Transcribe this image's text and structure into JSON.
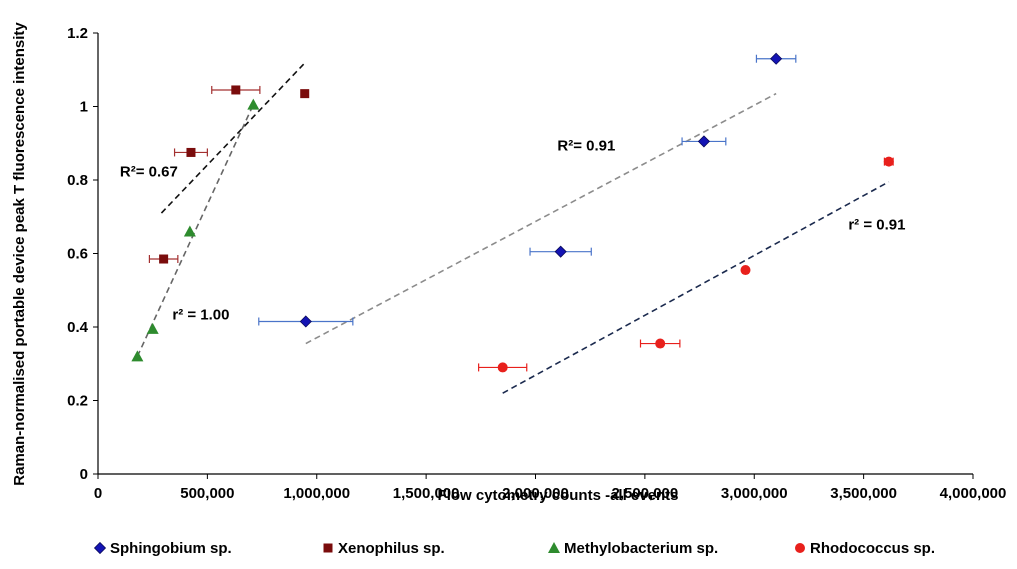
{
  "chart_data": {
    "type": "scatter",
    "xlabel": "Flow cytometry counts -all events",
    "ylabel": "Raman-normalised portable device peak T fluorescence intensity",
    "xlim": [
      0,
      4000000
    ],
    "ylim": [
      0,
      1.2
    ],
    "x_ticks": [
      0,
      500000,
      1000000,
      1500000,
      2000000,
      2500000,
      3000000,
      3500000,
      4000000
    ],
    "x_tick_labels": [
      "0",
      "500,000",
      "1,000,000",
      "1,500,000",
      "2,000,000",
      "2,500,000",
      "3,000,000",
      "3,500,000",
      "4,000,000"
    ],
    "y_ticks": [
      0,
      0.2,
      0.4,
      0.6,
      0.8,
      1.0,
      1.2
    ],
    "y_tick_labels": [
      "0",
      "0.2",
      "0.4",
      "0.6",
      "0.8",
      "1",
      "1.2"
    ],
    "grid": false,
    "legend_position": "bottom",
    "series": [
      {
        "name": "Sphingobium sp.",
        "marker": "diamond",
        "color": "#1414b4",
        "error_color": "#4a74c9",
        "points": [
          {
            "x": 950000,
            "y": 0.415,
            "xerr": 215000
          },
          {
            "x": 2115000,
            "y": 0.605,
            "xerr": 140000
          },
          {
            "x": 2770000,
            "y": 0.905,
            "xerr": 100000
          },
          {
            "x": 3100000,
            "y": 1.13,
            "xerr": 90000
          }
        ],
        "trendline": {
          "x": [
            950000,
            3100000
          ],
          "y": [
            0.355,
            1.035
          ],
          "color": "#8c8c8c"
        },
        "annotation": {
          "text": "R²= 0.91",
          "x": 2100000,
          "y": 0.88
        }
      },
      {
        "name": "Xenophilus sp.",
        "marker": "square",
        "color": "#7a0c0c",
        "error_color": "#a33030",
        "points": [
          {
            "x": 300000,
            "y": 0.585,
            "xerr": 65000
          },
          {
            "x": 425000,
            "y": 0.875,
            "xerr": 75000
          },
          {
            "x": 630000,
            "y": 1.045,
            "xerr": 110000
          },
          {
            "x": 945000,
            "y": 1.035,
            "xerr": 0
          }
        ],
        "trendline": {
          "x": [
            290000,
            940000
          ],
          "y": [
            0.71,
            1.115
          ],
          "color": "#111111"
        },
        "annotation": {
          "text": "R²= 0.67",
          "x": 100000,
          "y": 0.81
        }
      },
      {
        "name": "Methylobacterium sp.",
        "marker": "triangle",
        "color": "#2e8b2e",
        "error_color": "#2e8b2e",
        "points": [
          {
            "x": 180000,
            "y": 0.32,
            "xerr": 0
          },
          {
            "x": 250000,
            "y": 0.395,
            "xerr": 0
          },
          {
            "x": 420000,
            "y": 0.66,
            "xerr": 0
          },
          {
            "x": 710000,
            "y": 1.005,
            "xerr": 0
          }
        ],
        "trendline": {
          "x": [
            180000,
            710000
          ],
          "y": [
            0.32,
            1.005
          ],
          "color": "#666666"
        },
        "annotation": {
          "text": "r² = 1.00",
          "x": 340000,
          "y": 0.42
        }
      },
      {
        "name": "Rhodococcus sp.",
        "marker": "circle",
        "color": "#e8201c",
        "error_color": "#e8201c",
        "points": [
          {
            "x": 1850000,
            "y": 0.29,
            "xerr": 110000
          },
          {
            "x": 2570000,
            "y": 0.355,
            "xerr": 90000
          },
          {
            "x": 2960000,
            "y": 0.555,
            "xerr": 0
          },
          {
            "x": 3615000,
            "y": 0.85,
            "xerr": 20000
          }
        ],
        "trendline": {
          "x": [
            1850000,
            3615000
          ],
          "y": [
            0.22,
            0.795
          ],
          "color": "#1b2a4e"
        },
        "annotation": {
          "text": "r² = 0.91",
          "x": 3430000,
          "y": 0.665
        }
      }
    ]
  }
}
